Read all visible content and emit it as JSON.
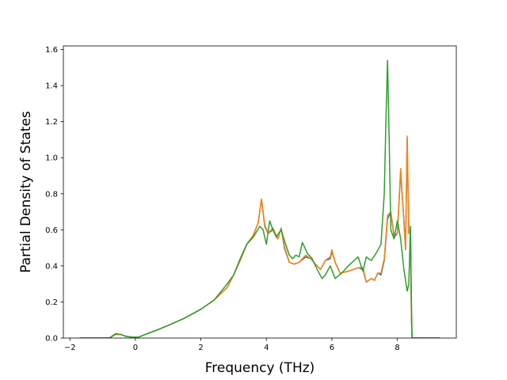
{
  "chart_data": {
    "type": "line",
    "title": "",
    "xlabel": "Frequency (THz)",
    "ylabel": "Partial Density of States",
    "xlim": [
      -2.2,
      9.8
    ],
    "ylim": [
      0.0,
      1.62
    ],
    "xticks": [
      -2,
      0,
      2,
      4,
      6,
      8
    ],
    "xtick_labels": [
      "−2",
      "0",
      "2",
      "4",
      "6",
      "8"
    ],
    "yticks": [
      0.0,
      0.2,
      0.4,
      0.6,
      0.8,
      1.0,
      1.2,
      1.4,
      1.6
    ],
    "ytick_labels": [
      "0.0",
      "0.2",
      "0.4",
      "0.6",
      "0.8",
      "1.0",
      "1.2",
      "1.4",
      "1.6"
    ],
    "grid": false,
    "legend": "none",
    "series": [
      {
        "color": "#1f77b4",
        "x": [
          -1.7,
          -0.8,
          -0.6,
          -0.45,
          -0.3,
          -0.1,
          0.1,
          0.3,
          0.6,
          1.0,
          1.5,
          2.0,
          2.4,
          2.8,
          3.0,
          3.2,
          3.4,
          3.6,
          3.75,
          3.85,
          3.95,
          4.05,
          4.2,
          4.35,
          4.45,
          4.55,
          4.7,
          4.85,
          5.0,
          5.2,
          5.35,
          5.5,
          5.65,
          5.8,
          5.95,
          6.0,
          6.1,
          6.25,
          6.5,
          6.8,
          6.95,
          7.05,
          7.2,
          7.3,
          7.4,
          7.5,
          7.6,
          7.7,
          7.8,
          7.9,
          8.0,
          8.1,
          8.2,
          8.25,
          8.3,
          8.35,
          8.4,
          8.43,
          8.45,
          9.3
        ],
        "y": [
          0.0,
          0.0,
          0.02,
          0.02,
          0.01,
          0.005,
          0.005,
          0.02,
          0.04,
          0.07,
          0.11,
          0.16,
          0.21,
          0.28,
          0.35,
          0.43,
          0.52,
          0.57,
          0.64,
          0.77,
          0.62,
          0.58,
          0.6,
          0.55,
          0.61,
          0.5,
          0.42,
          0.41,
          0.42,
          0.45,
          0.44,
          0.41,
          0.38,
          0.43,
          0.44,
          0.48,
          0.42,
          0.36,
          0.37,
          0.39,
          0.38,
          0.31,
          0.33,
          0.32,
          0.36,
          0.35,
          0.43,
          0.66,
          0.7,
          0.56,
          0.58,
          0.92,
          0.65,
          0.49,
          1.11,
          0.58,
          0.6,
          0.1,
          0.0,
          0.0
        ]
      },
      {
        "color": "#ff7f0e",
        "x": [
          -1.7,
          -0.8,
          -0.6,
          -0.45,
          -0.3,
          -0.1,
          0.1,
          0.3,
          0.6,
          1.0,
          1.5,
          2.0,
          2.4,
          2.8,
          3.0,
          3.2,
          3.4,
          3.6,
          3.75,
          3.85,
          3.95,
          4.05,
          4.2,
          4.35,
          4.45,
          4.55,
          4.7,
          4.85,
          5.0,
          5.2,
          5.35,
          5.5,
          5.65,
          5.8,
          5.95,
          6.0,
          6.1,
          6.25,
          6.5,
          6.8,
          6.95,
          7.05,
          7.2,
          7.3,
          7.4,
          7.5,
          7.6,
          7.7,
          7.8,
          7.9,
          8.0,
          8.1,
          8.2,
          8.25,
          8.3,
          8.35,
          8.4,
          8.43,
          8.45,
          9.3
        ],
        "y": [
          0.0,
          0.0,
          0.02,
          0.02,
          0.01,
          0.005,
          0.005,
          0.02,
          0.04,
          0.07,
          0.11,
          0.16,
          0.21,
          0.28,
          0.35,
          0.43,
          0.52,
          0.57,
          0.64,
          0.77,
          0.63,
          0.58,
          0.61,
          0.55,
          0.61,
          0.51,
          0.42,
          0.41,
          0.42,
          0.46,
          0.44,
          0.41,
          0.38,
          0.43,
          0.45,
          0.49,
          0.42,
          0.36,
          0.37,
          0.39,
          0.39,
          0.31,
          0.33,
          0.32,
          0.36,
          0.36,
          0.44,
          0.68,
          0.7,
          0.57,
          0.58,
          0.94,
          0.65,
          0.49,
          1.12,
          0.58,
          0.6,
          0.1,
          0.0,
          0.0
        ]
      },
      {
        "color": "#2ca02c",
        "x": [
          -1.7,
          -0.8,
          -0.6,
          -0.45,
          -0.3,
          -0.1,
          0.1,
          0.3,
          0.6,
          1.0,
          1.5,
          2.0,
          2.4,
          2.8,
          3.0,
          3.2,
          3.4,
          3.6,
          3.8,
          3.9,
          4.0,
          4.1,
          4.2,
          4.3,
          4.45,
          4.55,
          4.7,
          4.8,
          4.9,
          5.0,
          5.1,
          5.25,
          5.4,
          5.55,
          5.7,
          5.8,
          5.95,
          6.1,
          6.3,
          6.5,
          6.8,
          6.95,
          7.05,
          7.2,
          7.35,
          7.5,
          7.6,
          7.65,
          7.7,
          7.75,
          7.8,
          7.9,
          8.0,
          8.1,
          8.2,
          8.3,
          8.35,
          8.4,
          8.43,
          8.45,
          9.3
        ],
        "y": [
          0.0,
          0.0,
          0.025,
          0.02,
          0.01,
          0.005,
          0.005,
          0.02,
          0.04,
          0.07,
          0.11,
          0.16,
          0.21,
          0.3,
          0.35,
          0.44,
          0.52,
          0.56,
          0.62,
          0.6,
          0.52,
          0.65,
          0.6,
          0.56,
          0.6,
          0.54,
          0.46,
          0.44,
          0.46,
          0.45,
          0.53,
          0.47,
          0.44,
          0.38,
          0.33,
          0.35,
          0.4,
          0.33,
          0.36,
          0.4,
          0.45,
          0.37,
          0.45,
          0.43,
          0.47,
          0.52,
          0.8,
          1.2,
          1.54,
          1.1,
          0.6,
          0.55,
          0.65,
          0.55,
          0.38,
          0.26,
          0.3,
          0.62,
          0.2,
          0.0,
          0.0
        ]
      }
    ]
  }
}
